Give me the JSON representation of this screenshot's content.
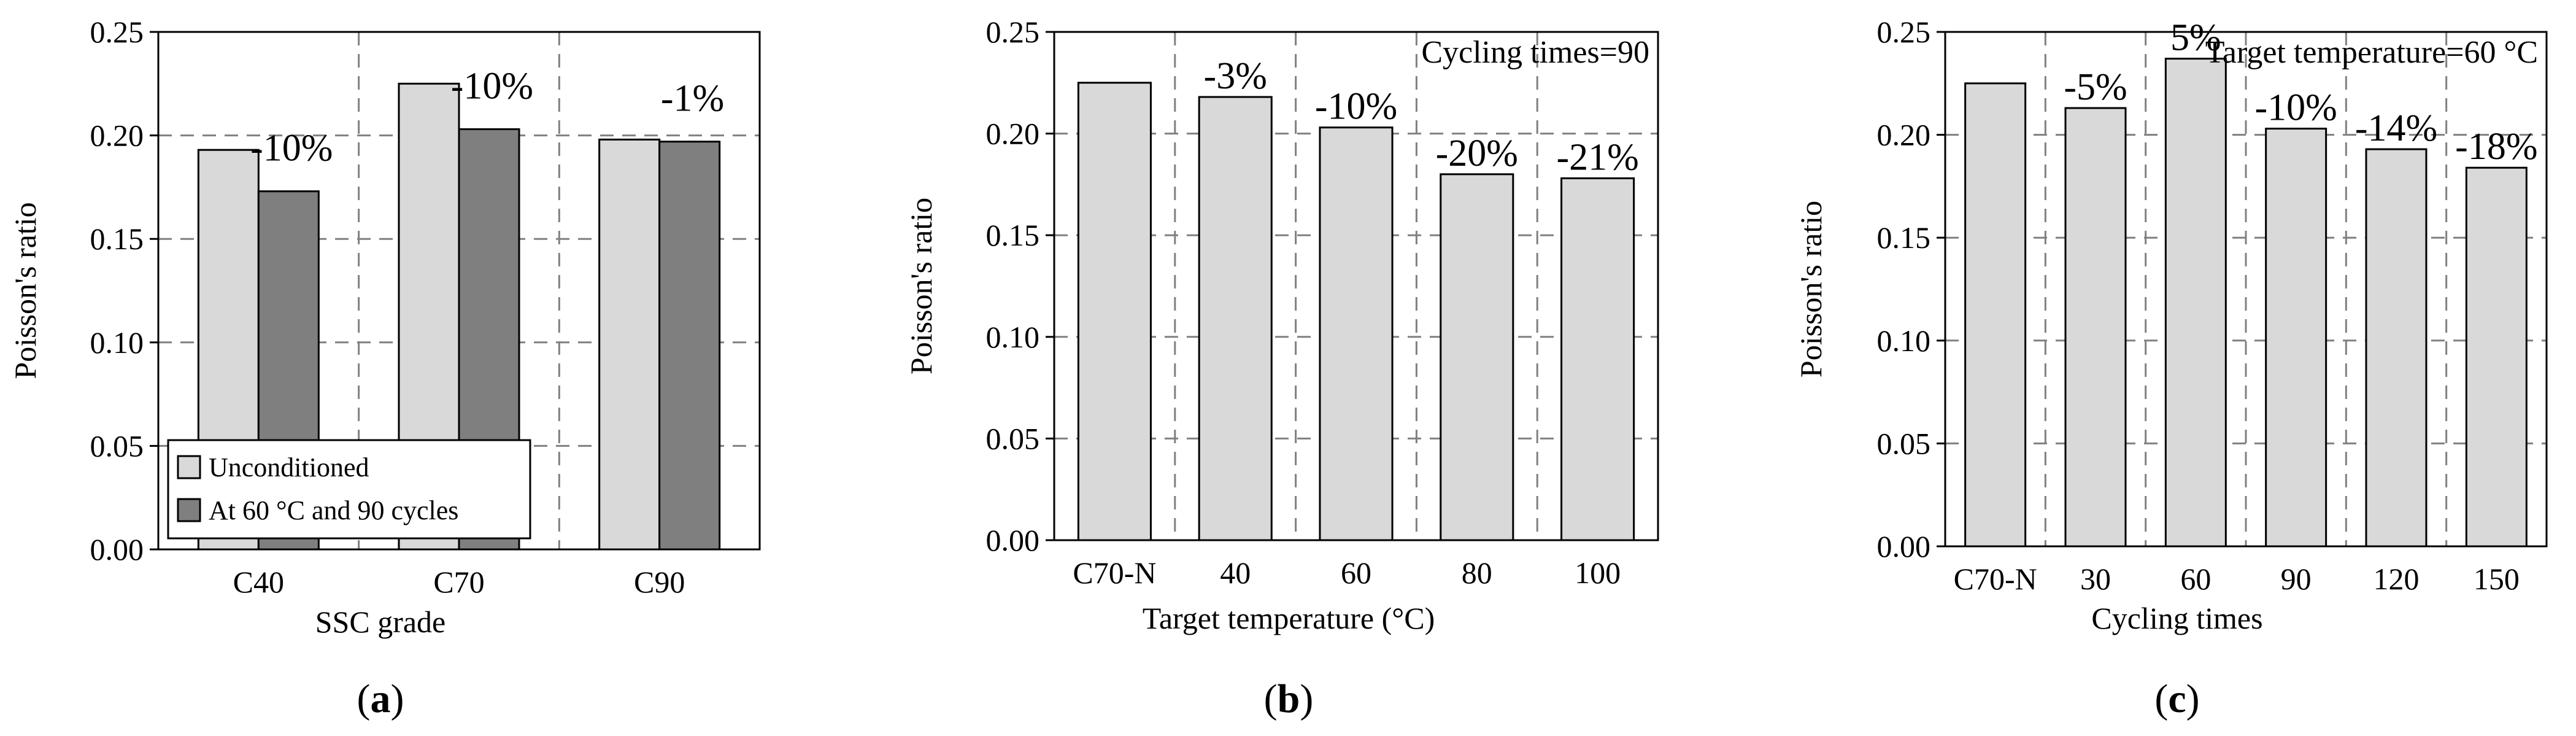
{
  "colors": {
    "light_bar": "#d9d9d9",
    "dark_bar": "#7f7f7f",
    "grid": "#808080",
    "axis": "#000000"
  },
  "chart_data": [
    {
      "type": "bar",
      "panel_label": {
        "open": "(",
        "letter": "a",
        "close": ")"
      },
      "title": "",
      "xlabel": "SSC grade",
      "ylabel": "Poisson's ratio",
      "ylim": [
        0,
        0.25
      ],
      "yticks": [
        "0.00",
        "0.05",
        "0.10",
        "0.15",
        "0.20",
        "0.25"
      ],
      "categories": [
        "C40",
        "C70",
        "C90"
      ],
      "series": [
        {
          "name": "Unconditioned",
          "values": [
            0.193,
            0.225,
            0.198
          ]
        },
        {
          "name": "At 60 °C and 90 cycles",
          "values": [
            0.173,
            0.203,
            0.197
          ]
        }
      ],
      "annotations": [
        "-10%",
        "-10%",
        "-1%"
      ],
      "legend_position": "bottom-left",
      "grid": true
    },
    {
      "type": "bar",
      "panel_label": {
        "open": "(",
        "letter": "b",
        "close": ")"
      },
      "title": "Cycling times=90",
      "xlabel": "Target temperature  (°C)",
      "ylabel": "Poisson's ratio",
      "ylim": [
        0,
        0.25
      ],
      "yticks": [
        "0.00",
        "0.05",
        "0.10",
        "0.15",
        "0.20",
        "0.25"
      ],
      "categories": [
        "C70-N",
        "40",
        "60",
        "80",
        "100"
      ],
      "values": [
        0.225,
        0.218,
        0.203,
        0.18,
        0.178
      ],
      "annotations": [
        "",
        "-3%",
        "-10%",
        "-20%",
        "-21%"
      ],
      "grid": true
    },
    {
      "type": "bar",
      "panel_label": {
        "open": "(",
        "letter": "c",
        "close": ")"
      },
      "title": "Target temperature=60  °C",
      "xlabel": "Cycling times",
      "ylabel": "Poisson's ratio",
      "ylim": [
        0,
        0.25
      ],
      "yticks": [
        "0.00",
        "0.05",
        "0.10",
        "0.15",
        "0.20",
        "0.25"
      ],
      "categories": [
        "C70-N",
        "30",
        "60",
        "90",
        "120",
        "150"
      ],
      "values": [
        0.225,
        0.213,
        0.237,
        0.203,
        0.193,
        0.184
      ],
      "annotations": [
        "",
        "-5%",
        "5%",
        "-10%",
        "-14%",
        "-18%"
      ],
      "grid": true
    }
  ]
}
